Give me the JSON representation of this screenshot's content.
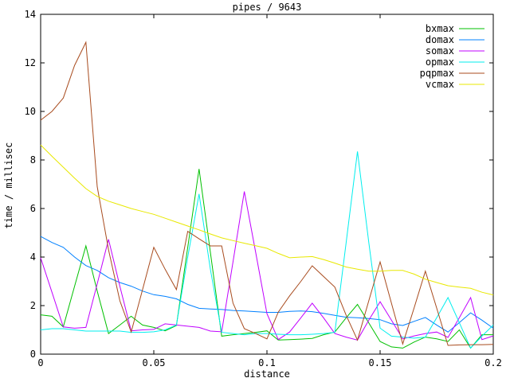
{
  "title": "pipes / 9643",
  "x_axis": {
    "label": "distance",
    "tick_labels": [
      "0",
      "0.05",
      "0.1",
      "0.15",
      "0.2"
    ],
    "tick_values": [
      0,
      0.05,
      0.1,
      0.15,
      0.2
    ],
    "min": 0,
    "max": 0.2
  },
  "y_axis": {
    "label": "time / millisec",
    "tick_labels": [
      "0",
      "2",
      "4",
      "6",
      "8",
      "10",
      "12",
      "14"
    ],
    "tick_values": [
      0,
      2,
      4,
      6,
      8,
      10,
      12,
      14
    ],
    "min": 0,
    "max": 14
  },
  "colors": {
    "bxmax": "#00c000",
    "domax": "#0080ff",
    "somax": "#c000ff",
    "opmax": "#00eeee",
    "pqpmax": "#a84b1e",
    "vcmax": "#e8e800",
    "axis": "#000000",
    "background": "#ffffff"
  },
  "legend": {
    "position": "top-right",
    "items": [
      {
        "label": "bxmax",
        "color": "#00c000"
      },
      {
        "label": "domax",
        "color": "#0080ff"
      },
      {
        "label": "somax",
        "color": "#c000ff"
      },
      {
        "label": "opmax",
        "color": "#00eeee"
      },
      {
        "label": "pqpmax",
        "color": "#a84b1e"
      },
      {
        "label": "vcmax",
        "color": "#e8e800"
      }
    ]
  },
  "chart_data": {
    "type": "line",
    "title": "pipes / 9643",
    "xlabel": "distance",
    "ylabel": "time / millisec",
    "xlim": [
      0,
      0.2
    ],
    "ylim": [
      0,
      14
    ],
    "grid": false,
    "legend_position": "top-right",
    "x": [
      0,
      0.005,
      0.01,
      0.015,
      0.02,
      0.025,
      0.03,
      0.035,
      0.04,
      0.045,
      0.05,
      0.055,
      0.06,
      0.065,
      0.07,
      0.075,
      0.08,
      0.085,
      0.09,
      0.095,
      0.1,
      0.105,
      0.11,
      0.115,
      0.12,
      0.125,
      0.13,
      0.135,
      0.14,
      0.145,
      0.15,
      0.155,
      0.16,
      0.165,
      0.17,
      0.175,
      0.18,
      0.185,
      0.19,
      0.195,
      0.2
    ],
    "series": [
      {
        "name": "bxmax",
        "color": "#00c000",
        "values": [
          1.62,
          1.56,
          1.12,
          2.8,
          4.46,
          2.6,
          0.85,
          1.2,
          1.56,
          1.2,
          1.1,
          0.96,
          1.18,
          4.4,
          7.63,
          4.2,
          0.74,
          0.8,
          0.85,
          0.9,
          0.96,
          0.58,
          0.6,
          0.62,
          0.65,
          0.8,
          0.91,
          1.5,
          2.05,
          1.29,
          0.52,
          0.3,
          0.25,
          0.5,
          0.7,
          0.63,
          0.52,
          1.0,
          0.25,
          0.8,
          0.8
        ]
      },
      {
        "name": "domax",
        "color": "#0080ff",
        "values": [
          4.85,
          4.6,
          4.4,
          4.0,
          3.65,
          3.45,
          3.15,
          2.95,
          2.8,
          2.6,
          2.45,
          2.38,
          2.28,
          2.05,
          1.89,
          1.86,
          1.84,
          1.8,
          1.78,
          1.75,
          1.72,
          1.72,
          1.76,
          1.78,
          1.75,
          1.68,
          1.6,
          1.52,
          1.5,
          1.47,
          1.42,
          1.25,
          1.18,
          1.35,
          1.51,
          1.2,
          0.91,
          1.3,
          1.7,
          1.4,
          1.07
        ]
      },
      {
        "name": "somax",
        "color": "#c000ff",
        "values": [
          3.97,
          2.55,
          1.12,
          1.07,
          1.1,
          2.9,
          4.73,
          2.8,
          0.96,
          1.0,
          1.02,
          1.25,
          1.2,
          1.15,
          1.1,
          0.95,
          0.92,
          3.8,
          6.7,
          4.2,
          1.67,
          0.6,
          0.91,
          1.5,
          2.1,
          1.5,
          0.85,
          0.7,
          0.58,
          1.4,
          2.16,
          1.4,
          0.63,
          0.75,
          0.85,
          0.91,
          0.69,
          1.5,
          2.33,
          0.6,
          0.75
        ]
      },
      {
        "name": "opmax",
        "color": "#00eeee",
        "values": [
          1.0,
          1.05,
          1.05,
          1.0,
          0.95,
          0.95,
          0.95,
          0.95,
          0.9,
          0.9,
          0.92,
          1.0,
          1.2,
          4.0,
          6.6,
          3.5,
          0.9,
          0.85,
          0.8,
          0.85,
          0.85,
          0.82,
          0.8,
          0.8,
          0.82,
          0.85,
          0.9,
          4.6,
          8.35,
          4.6,
          1.07,
          0.74,
          0.7,
          0.66,
          0.7,
          1.5,
          2.33,
          1.3,
          0.25,
          0.74,
          1.2
        ]
      },
      {
        "name": "pqpmax",
        "color": "#a84b1e",
        "values": [
          9.64,
          10.0,
          10.55,
          11.9,
          12.85,
          6.9,
          4.3,
          2.2,
          0.91,
          2.65,
          4.4,
          3.5,
          2.66,
          5.06,
          4.75,
          4.46,
          4.46,
          2.1,
          1.05,
          0.85,
          0.63,
          1.73,
          2.4,
          3.0,
          3.64,
          3.2,
          2.76,
          1.6,
          0.58,
          2.2,
          3.8,
          2.1,
          0.42,
          1.9,
          3.42,
          1.9,
          0.36,
          0.38,
          0.39,
          0.39,
          0.4
        ]
      },
      {
        "name": "vcmax",
        "color": "#e8e800",
        "values": [
          8.62,
          8.15,
          7.7,
          7.25,
          6.82,
          6.5,
          6.3,
          6.15,
          6.0,
          5.88,
          5.76,
          5.6,
          5.44,
          5.28,
          5.12,
          4.95,
          4.79,
          4.68,
          4.57,
          4.47,
          4.36,
          4.15,
          3.97,
          4.0,
          4.02,
          3.9,
          3.75,
          3.59,
          3.5,
          3.42,
          3.42,
          3.45,
          3.45,
          3.3,
          3.09,
          2.95,
          2.82,
          2.76,
          2.71,
          2.55,
          2.44
        ]
      }
    ]
  }
}
